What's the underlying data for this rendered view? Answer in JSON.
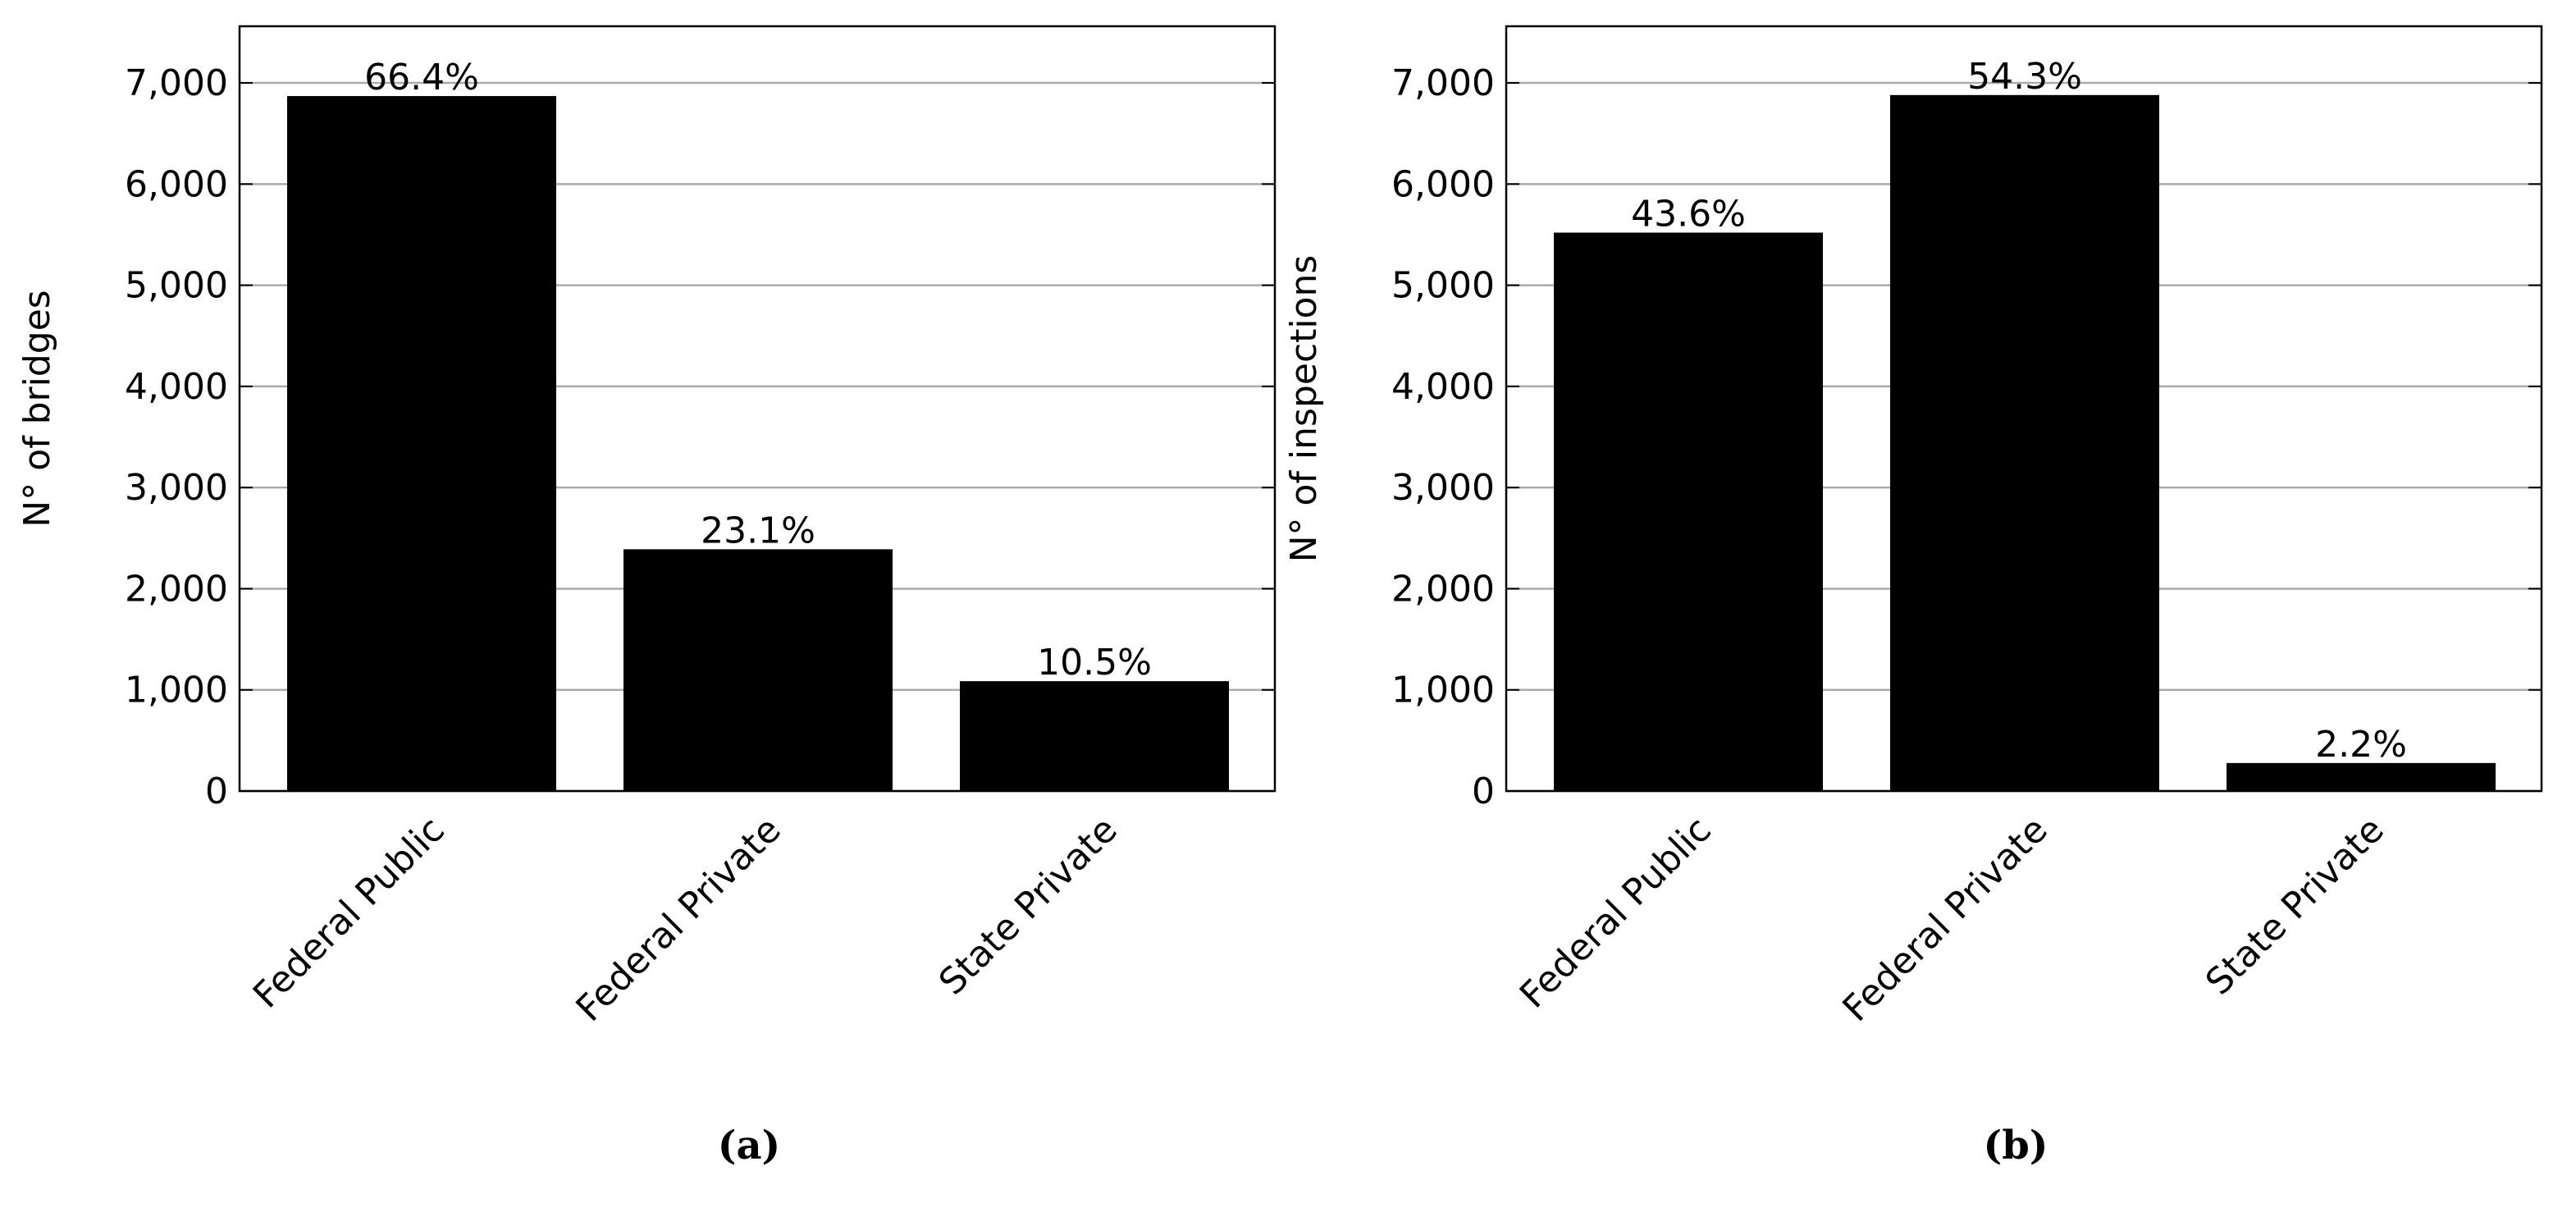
{
  "chart_data": [
    {
      "type": "bar",
      "caption": "(a)",
      "ylabel": "N° of bridges",
      "categories": [
        "Federal Public",
        "Federal Private",
        "State Private"
      ],
      "values": [
        6870,
        2390,
        1086
      ],
      "annotations": [
        "66.4%",
        "23.1%",
        "10.5%"
      ],
      "color": "#000000",
      "grid": true,
      "ylim": [
        0,
        7560
      ],
      "yticks": [
        0,
        {
          "value": 1000,
          "label": "1,000"
        },
        {
          "value": 2000,
          "label": "2,000"
        },
        {
          "value": 3000,
          "label": "3,000"
        },
        {
          "value": 4000,
          "label": "4,000"
        },
        {
          "value": 5000,
          "label": "5,000"
        },
        {
          "value": 6000,
          "label": "6,000"
        },
        {
          "value": 7000,
          "label": "7,000"
        }
      ]
    },
    {
      "type": "bar",
      "caption": "(b)",
      "ylabel": "N° of inspections",
      "categories": [
        "Federal Public",
        "Federal Private",
        "State Private"
      ],
      "values": [
        5520,
        6880,
        277
      ],
      "annotations": [
        "43.6%",
        "54.3%",
        "2.2%"
      ],
      "color": "#000000",
      "grid": true,
      "ylim": [
        0,
        7560
      ],
      "yticks": [
        0,
        {
          "value": 1000,
          "label": "1,000"
        },
        {
          "value": 2000,
          "label": "2,000"
        },
        {
          "value": 3000,
          "label": "3,000"
        },
        {
          "value": 4000,
          "label": "4,000"
        },
        {
          "value": 5000,
          "label": "5,000"
        },
        {
          "value": 6000,
          "label": "6,000"
        },
        {
          "value": 7000,
          "label": "7,000"
        }
      ]
    }
  ]
}
